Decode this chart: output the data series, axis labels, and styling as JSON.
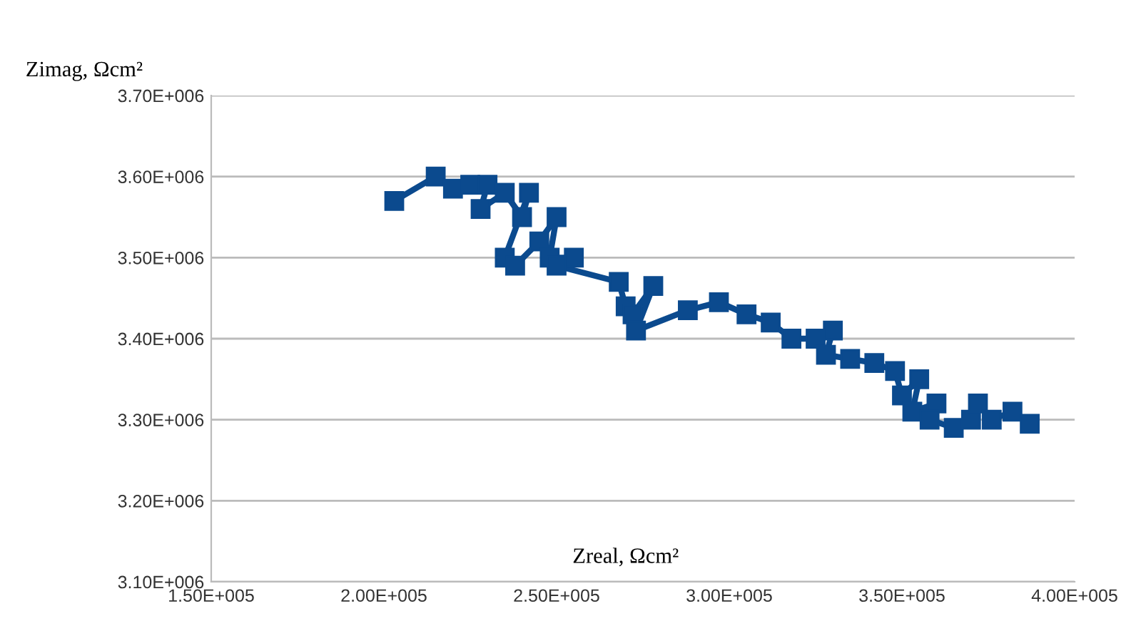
{
  "chart_data": {
    "type": "line",
    "xlabel": "Zreal, Ωcm²",
    "ylabel": "Zimag, Ωcm²",
    "xlim": [
      150000,
      400000
    ],
    "ylim": [
      3100000,
      3700000
    ],
    "xticks": [
      {
        "value": 150000,
        "label": "1.50E+005"
      },
      {
        "value": 200000,
        "label": "2.00E+005"
      },
      {
        "value": 250000,
        "label": "2.50E+005"
      },
      {
        "value": 300000,
        "label": "3.00E+005"
      },
      {
        "value": 350000,
        "label": "3.50E+005"
      },
      {
        "value": 400000,
        "label": "4.00E+005"
      }
    ],
    "yticks": [
      {
        "value": 3100000,
        "label": "3.10E+006"
      },
      {
        "value": 3200000,
        "label": "3.20E+006"
      },
      {
        "value": 3300000,
        "label": "3.30E+006"
      },
      {
        "value": 3400000,
        "label": "3.40E+006"
      },
      {
        "value": 3500000,
        "label": "3.50E+006"
      },
      {
        "value": 3600000,
        "label": "3.60E+006"
      },
      {
        "value": 3700000,
        "label": "3.70E+006"
      }
    ],
    "grid": "y",
    "marker": "square",
    "line_style": "solid",
    "legend": false,
    "series": [
      {
        "color": "#0b4a8e",
        "x": [
          203000,
          215000,
          220000,
          225000,
          230000,
          228000,
          235000,
          240000,
          242000,
          235000,
          238000,
          245000,
          250000,
          248000,
          255000,
          250000,
          268000,
          270000,
          272000,
          278000,
          273000,
          288000,
          297000,
          305000,
          312000,
          318000,
          325000,
          330000,
          328000,
          335000,
          342000,
          348000,
          350000,
          355000,
          353000,
          360000,
          358000,
          365000,
          370000,
          372000,
          376000,
          382000,
          387000
        ],
        "values": [
          3570000,
          3600000,
          3585000,
          3590000,
          3590000,
          3560000,
          3580000,
          3550000,
          3580000,
          3500000,
          3490000,
          3520000,
          3550000,
          3500000,
          3500000,
          3490000,
          3470000,
          3440000,
          3430000,
          3465000,
          3410000,
          3435000,
          3445000,
          3430000,
          3420000,
          3400000,
          3400000,
          3410000,
          3380000,
          3375000,
          3370000,
          3360000,
          3330000,
          3350000,
          3310000,
          3320000,
          3300000,
          3290000,
          3300000,
          3320000,
          3300000,
          3310000,
          3295000
        ]
      }
    ]
  }
}
